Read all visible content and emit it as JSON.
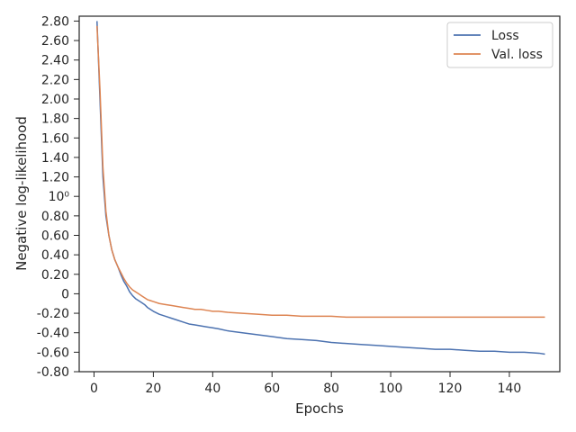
{
  "chart_data": {
    "type": "line",
    "xlabel": "Epochs",
    "ylabel": "Negative log-likelihood",
    "xlim": [
      -5,
      157
    ],
    "ylim": [
      -0.8,
      2.85
    ],
    "x_ticks": [
      0,
      20,
      40,
      60,
      80,
      100,
      120,
      140
    ],
    "y_ticks": [
      {
        "value": -0.8,
        "label": "-0.80"
      },
      {
        "value": -0.6,
        "label": "-0.60"
      },
      {
        "value": -0.4,
        "label": "-0.40"
      },
      {
        "value": -0.2,
        "label": "-0.20"
      },
      {
        "value": 0.0,
        "label": "0"
      },
      {
        "value": 0.2,
        "label": "0.20"
      },
      {
        "value": 0.4,
        "label": "0.40"
      },
      {
        "value": 0.6,
        "label": "0.60"
      },
      {
        "value": 0.8,
        "label": "0.80"
      },
      {
        "value": 1.0,
        "label": "10⁰"
      },
      {
        "value": 1.2,
        "label": "1.20"
      },
      {
        "value": 1.4,
        "label": "1.40"
      },
      {
        "value": 1.6,
        "label": "1.60"
      },
      {
        "value": 1.8,
        "label": "1.80"
      },
      {
        "value": 2.0,
        "label": "2.00"
      },
      {
        "value": 2.2,
        "label": "2.20"
      },
      {
        "value": 2.4,
        "label": "2.40"
      },
      {
        "value": 2.6,
        "label": "2.60"
      },
      {
        "value": 2.8,
        "label": "2.80"
      }
    ],
    "grid": false,
    "legend_position": "top-right",
    "series": [
      {
        "name": "Loss",
        "color": "#4c72b0",
        "points": [
          [
            1,
            2.8
          ],
          [
            2,
            2.0
          ],
          [
            3,
            1.2
          ],
          [
            4,
            0.8
          ],
          [
            5,
            0.6
          ],
          [
            6,
            0.45
          ],
          [
            7,
            0.35
          ],
          [
            8,
            0.28
          ],
          [
            9,
            0.2
          ],
          [
            10,
            0.13
          ],
          [
            11,
            0.08
          ],
          [
            12,
            0.02
          ],
          [
            13,
            -0.02
          ],
          [
            14,
            -0.05
          ],
          [
            15,
            -0.07
          ],
          [
            16,
            -0.09
          ],
          [
            17,
            -0.11
          ],
          [
            18,
            -0.14
          ],
          [
            19,
            -0.16
          ],
          [
            20,
            -0.18
          ],
          [
            22,
            -0.21
          ],
          [
            24,
            -0.23
          ],
          [
            26,
            -0.25
          ],
          [
            28,
            -0.27
          ],
          [
            30,
            -0.29
          ],
          [
            32,
            -0.31
          ],
          [
            34,
            -0.32
          ],
          [
            36,
            -0.33
          ],
          [
            38,
            -0.34
          ],
          [
            40,
            -0.35
          ],
          [
            42,
            -0.36
          ],
          [
            45,
            -0.38
          ],
          [
            50,
            -0.4
          ],
          [
            55,
            -0.42
          ],
          [
            60,
            -0.44
          ],
          [
            65,
            -0.46
          ],
          [
            70,
            -0.47
          ],
          [
            75,
            -0.48
          ],
          [
            80,
            -0.5
          ],
          [
            85,
            -0.51
          ],
          [
            90,
            -0.52
          ],
          [
            95,
            -0.53
          ],
          [
            100,
            -0.54
          ],
          [
            105,
            -0.55
          ],
          [
            110,
            -0.56
          ],
          [
            115,
            -0.57
          ],
          [
            120,
            -0.57
          ],
          [
            125,
            -0.58
          ],
          [
            130,
            -0.59
          ],
          [
            135,
            -0.59
          ],
          [
            140,
            -0.6
          ],
          [
            145,
            -0.6
          ],
          [
            150,
            -0.61
          ],
          [
            152,
            -0.62
          ]
        ]
      },
      {
        "name": "Val. loss",
        "color": "#dd8452",
        "points": [
          [
            1,
            2.75
          ],
          [
            2,
            2.1
          ],
          [
            3,
            1.3
          ],
          [
            4,
            0.85
          ],
          [
            5,
            0.6
          ],
          [
            6,
            0.45
          ],
          [
            7,
            0.35
          ],
          [
            8,
            0.28
          ],
          [
            9,
            0.22
          ],
          [
            10,
            0.16
          ],
          [
            11,
            0.11
          ],
          [
            12,
            0.07
          ],
          [
            13,
            0.04
          ],
          [
            14,
            0.02
          ],
          [
            15,
            0.0
          ],
          [
            16,
            -0.02
          ],
          [
            17,
            -0.04
          ],
          [
            18,
            -0.06
          ],
          [
            19,
            -0.07
          ],
          [
            20,
            -0.08
          ],
          [
            22,
            -0.1
          ],
          [
            24,
            -0.11
          ],
          [
            26,
            -0.12
          ],
          [
            28,
            -0.13
          ],
          [
            30,
            -0.14
          ],
          [
            32,
            -0.15
          ],
          [
            34,
            -0.16
          ],
          [
            36,
            -0.16
          ],
          [
            38,
            -0.17
          ],
          [
            40,
            -0.18
          ],
          [
            42,
            -0.18
          ],
          [
            45,
            -0.19
          ],
          [
            50,
            -0.2
          ],
          [
            55,
            -0.21
          ],
          [
            60,
            -0.22
          ],
          [
            65,
            -0.22
          ],
          [
            70,
            -0.23
          ],
          [
            75,
            -0.23
          ],
          [
            80,
            -0.23
          ],
          [
            85,
            -0.24
          ],
          [
            90,
            -0.24
          ],
          [
            95,
            -0.24
          ],
          [
            100,
            -0.24
          ],
          [
            105,
            -0.24
          ],
          [
            110,
            -0.24
          ],
          [
            115,
            -0.24
          ],
          [
            120,
            -0.24
          ],
          [
            125,
            -0.24
          ],
          [
            130,
            -0.24
          ],
          [
            135,
            -0.24
          ],
          [
            140,
            -0.24
          ],
          [
            145,
            -0.24
          ],
          [
            150,
            -0.24
          ],
          [
            152,
            -0.24
          ]
        ]
      }
    ]
  }
}
